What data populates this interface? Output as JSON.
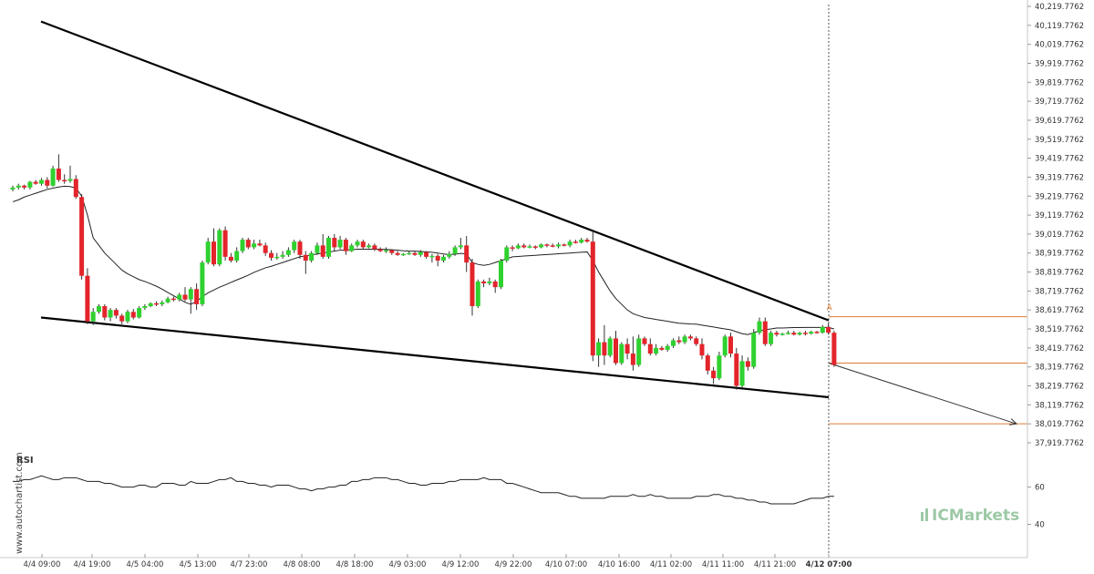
{
  "chart_data": {
    "type": "candlestick",
    "price_axis": {
      "ticks": [
        "40,219.7762",
        "40,119.7762",
        "40,019.7762",
        "39,919.7762",
        "39,819.7762",
        "39,719.7762",
        "39,619.7762",
        "39,519.7762",
        "39,419.7762",
        "39,319.7762",
        "39,219.7762",
        "39,119.7762",
        "39,019.7762",
        "38,919.7762",
        "38,819.7762",
        "38,719.7762",
        "38,619.7762",
        "38,519.7762",
        "38,419.7762",
        "38,319.7762",
        "38,219.7762",
        "38,119.7762",
        "38,019.7762",
        "37,919.7762"
      ],
      "range": [
        37880,
        40240
      ]
    },
    "time_axis": {
      "labels": [
        "4/4 09:00",
        "4/4 19:00",
        "4/5 04:00",
        "4/5 13:00",
        "4/7 23:00",
        "4/8 08:00",
        "4/8 18:00",
        "4/9 03:00",
        "4/9 12:00",
        "4/9 22:00",
        "4/10 07:00",
        "4/10 16:00",
        "4/11 02:00",
        "4/11 11:00",
        "4/11 21:00",
        "4/12 07:00"
      ],
      "bold_label": "4/12 07:00"
    },
    "candles": [
      [
        39255,
        39265,
        39245,
        39275
      ],
      [
        39265,
        39275,
        39255,
        39285
      ],
      [
        39275,
        39265,
        39255,
        39280
      ],
      [
        39265,
        39295,
        39255,
        39300
      ],
      [
        39295,
        39285,
        39280,
        39305
      ],
      [
        39285,
        39305,
        39275,
        39315
      ],
      [
        39305,
        39275,
        39260,
        39320
      ],
      [
        39275,
        39365,
        39270,
        39380
      ],
      [
        39365,
        39305,
        39295,
        39440
      ],
      [
        39305,
        39300,
        39285,
        39335
      ],
      [
        39300,
        39310,
        39290,
        39380
      ],
      [
        39310,
        39215,
        39205,
        39330
      ],
      [
        39215,
        38800,
        38780,
        39230
      ],
      [
        38800,
        38560,
        38545,
        38840
      ],
      [
        38560,
        38610,
        38540,
        38630
      ],
      [
        38610,
        38640,
        38600,
        38650
      ],
      [
        38640,
        38580,
        38565,
        38650
      ],
      [
        38580,
        38620,
        38560,
        38630
      ],
      [
        38620,
        38590,
        38575,
        38630
      ],
      [
        38590,
        38560,
        38545,
        38600
      ],
      [
        38560,
        38610,
        38550,
        38620
      ],
      [
        38610,
        38580,
        38570,
        38625
      ],
      [
        38580,
        38630,
        38575,
        38640
      ],
      [
        38630,
        38640,
        38620,
        38650
      ],
      [
        38640,
        38655,
        38635,
        38660
      ],
      [
        38655,
        38650,
        38640,
        38665
      ],
      [
        38650,
        38660,
        38640,
        38670
      ],
      [
        38660,
        38680,
        38655,
        38690
      ],
      [
        38680,
        38675,
        38665,
        38690
      ],
      [
        38675,
        38700,
        38665,
        38710
      ],
      [
        38700,
        38675,
        38665,
        38740
      ],
      [
        38675,
        38730,
        38600,
        38740
      ],
      [
        38730,
        38650,
        38620,
        38760
      ],
      [
        38650,
        38870,
        38640,
        38880
      ],
      [
        38870,
        38980,
        38860,
        39000
      ],
      [
        38980,
        38860,
        38850,
        39050
      ],
      [
        38860,
        39040,
        38850,
        39050
      ],
      [
        39040,
        38900,
        38880,
        39060
      ],
      [
        38900,
        38880,
        38870,
        38920
      ],
      [
        38880,
        38930,
        38870,
        38950
      ],
      [
        38930,
        38990,
        38920,
        39000
      ],
      [
        38990,
        38950,
        38940,
        39000
      ],
      [
        38950,
        38970,
        38940,
        38990
      ],
      [
        38970,
        38960,
        38955,
        38990
      ],
      [
        38960,
        38920,
        38905,
        38975
      ],
      [
        38920,
        38895,
        38880,
        38935
      ],
      [
        38895,
        38900,
        38885,
        38920
      ],
      [
        38900,
        38910,
        38890,
        38930
      ],
      [
        38910,
        38935,
        38900,
        38950
      ],
      [
        38935,
        38980,
        38920,
        38990
      ],
      [
        38980,
        38910,
        38890,
        38990
      ],
      [
        38910,
        38880,
        38810,
        38930
      ],
      [
        38880,
        38920,
        38870,
        38930
      ],
      [
        38920,
        38960,
        38910,
        38975
      ],
      [
        38960,
        38900,
        38890,
        39020
      ],
      [
        38900,
        39000,
        38890,
        39010
      ],
      [
        39000,
        38950,
        38930,
        39020
      ],
      [
        38950,
        38990,
        38940,
        39010
      ],
      [
        38990,
        38930,
        38910,
        39000
      ],
      [
        38930,
        38960,
        38925,
        38970
      ],
      [
        38960,
        38980,
        38950,
        38990
      ],
      [
        38980,
        38950,
        38940,
        38990
      ],
      [
        38950,
        38960,
        38945,
        38970
      ],
      [
        38960,
        38940,
        38930,
        38970
      ],
      [
        38940,
        38930,
        38925,
        38950
      ],
      [
        38930,
        38935,
        38920,
        38950
      ],
      [
        38935,
        38920,
        38910,
        38940
      ],
      [
        38920,
        38910,
        38905,
        38930
      ],
      [
        38910,
        38915,
        38905,
        38920
      ],
      [
        38915,
        38920,
        38910,
        38930
      ],
      [
        38920,
        38910,
        38905,
        38930
      ],
      [
        38910,
        38925,
        38900,
        38935
      ],
      [
        38925,
        38900,
        38890,
        38930
      ],
      [
        38900,
        38905,
        38870,
        38915
      ],
      [
        38905,
        38880,
        38850,
        38915
      ],
      [
        38880,
        38900,
        38870,
        38910
      ],
      [
        38900,
        38915,
        38890,
        38930
      ],
      [
        38915,
        38950,
        38905,
        38960
      ],
      [
        38950,
        38960,
        38940,
        39000
      ],
      [
        38960,
        38870,
        38820,
        39010
      ],
      [
        38870,
        38640,
        38590,
        38890
      ],
      [
        38640,
        38770,
        38630,
        38780
      ],
      [
        38770,
        38760,
        38740,
        38780
      ],
      [
        38760,
        38770,
        38750,
        38790
      ],
      [
        38770,
        38740,
        38710,
        38780
      ],
      [
        38740,
        38880,
        38730,
        38890
      ],
      [
        38880,
        38950,
        38870,
        38960
      ],
      [
        38950,
        38945,
        38930,
        38960
      ],
      [
        38945,
        38960,
        38940,
        38970
      ],
      [
        38960,
        38950,
        38945,
        38970
      ],
      [
        38950,
        38955,
        38945,
        38965
      ],
      [
        38955,
        38950,
        38940,
        38960
      ],
      [
        38950,
        38965,
        38945,
        38970
      ],
      [
        38965,
        38960,
        38950,
        38970
      ],
      [
        38960,
        38955,
        38950,
        38970
      ],
      [
        38955,
        38965,
        38945,
        38975
      ],
      [
        38965,
        38960,
        38955,
        38970
      ],
      [
        38960,
        38980,
        38950,
        38990
      ],
      [
        38980,
        38975,
        38970,
        38990
      ],
      [
        38975,
        38990,
        38970,
        39000
      ],
      [
        38990,
        38980,
        38975,
        39000
      ],
      [
        38980,
        38380,
        38350,
        39030
      ],
      [
        38380,
        38450,
        38320,
        38470
      ],
      [
        38450,
        38380,
        38330,
        38540
      ],
      [
        38380,
        38470,
        38370,
        38480
      ],
      [
        38470,
        38340,
        38330,
        38510
      ],
      [
        38340,
        38440,
        38330,
        38450
      ],
      [
        38440,
        38390,
        38360,
        38470
      ],
      [
        38390,
        38330,
        38300,
        38480
      ],
      [
        38330,
        38470,
        38320,
        38490
      ],
      [
        38470,
        38440,
        38430,
        38480
      ],
      [
        38440,
        38390,
        38380,
        38470
      ],
      [
        38390,
        38420,
        38380,
        38440
      ],
      [
        38420,
        38410,
        38405,
        38430
      ],
      [
        38410,
        38430,
        38400,
        38440
      ],
      [
        38430,
        38460,
        38420,
        38470
      ],
      [
        38460,
        38450,
        38440,
        38480
      ],
      [
        38450,
        38480,
        38440,
        38490
      ],
      [
        38480,
        38470,
        38460,
        38490
      ],
      [
        38470,
        38440,
        38430,
        38480
      ],
      [
        38440,
        38380,
        38360,
        38470
      ],
      [
        38380,
        38300,
        38280,
        38390
      ],
      [
        38300,
        38260,
        38230,
        38320
      ],
      [
        38260,
        38380,
        38250,
        38400
      ],
      [
        38380,
        38480,
        38370,
        38490
      ],
      [
        38480,
        38390,
        38370,
        38500
      ],
      [
        38390,
        38220,
        38200,
        38420
      ],
      [
        38220,
        38350,
        38210,
        38380
      ],
      [
        38350,
        38320,
        38300,
        38370
      ],
      [
        38320,
        38500,
        38310,
        38520
      ],
      [
        38500,
        38560,
        38490,
        38580
      ],
      [
        38560,
        38440,
        38430,
        38580
      ],
      [
        38440,
        38500,
        38430,
        38510
      ],
      [
        38500,
        38490,
        38480,
        38510
      ],
      [
        38490,
        38495,
        38485,
        38500
      ],
      [
        38495,
        38500,
        38490,
        38510
      ],
      [
        38500,
        38490,
        38485,
        38510
      ],
      [
        38490,
        38500,
        38485,
        38505
      ],
      [
        38500,
        38495,
        38485,
        38510
      ],
      [
        38495,
        38505,
        38490,
        38510
      ],
      [
        38505,
        38500,
        38495,
        38510
      ],
      [
        38500,
        38530,
        38495,
        38540
      ],
      [
        38530,
        38500,
        38490,
        38550
      ],
      [
        38500,
        38330,
        38320,
        38510
      ]
    ],
    "moving_average": {
      "values": [
        39190,
        39200,
        39215,
        39225,
        39235,
        39245,
        39255,
        39262,
        39268,
        39272,
        39270,
        39262,
        39220,
        39120,
        39000,
        38960,
        38920,
        38890,
        38860,
        38830,
        38810,
        38795,
        38780,
        38770,
        38758,
        38745,
        38730,
        38712,
        38695,
        38678,
        38660,
        38650,
        38665,
        38690,
        38710,
        38725,
        38740,
        38752,
        38765,
        38778,
        38790,
        38803,
        38818,
        38830,
        38842,
        38850,
        38860,
        38870,
        38880,
        38890,
        38900,
        38905,
        38910,
        38915,
        38920,
        38925,
        38930,
        38935,
        38935,
        38938,
        38940,
        38940,
        38940,
        38940,
        38940,
        38939,
        38937,
        38935,
        38932,
        38930,
        38930,
        38928,
        38926,
        38924,
        38920,
        38915,
        38912,
        38914,
        38918,
        38915,
        38870,
        38860,
        38855,
        38860,
        38870,
        38880,
        38890,
        38900,
        38902,
        38904,
        38906,
        38908,
        38910,
        38912,
        38914,
        38916,
        38918,
        38920,
        38922,
        38924,
        38926,
        38880,
        38820,
        38770,
        38720,
        38680,
        38650,
        38620,
        38600,
        38590,
        38580,
        38575,
        38570,
        38565,
        38560,
        38555,
        38550,
        38548,
        38546,
        38545,
        38540,
        38535,
        38530,
        38525,
        38520,
        38515,
        38505,
        38495,
        38490,
        38500,
        38510,
        38515,
        38520,
        38525,
        38525,
        38526,
        38527,
        38527,
        38528,
        38528,
        38528,
        38528,
        38528,
        38520
      ]
    },
    "pattern": {
      "name": "falling wedge",
      "upper_line": [
        [
          0,
          40140
        ],
        [
          143,
          38565
        ]
      ],
      "lower_line": [
        [
          0,
          38580
        ],
        [
          143,
          38160
        ]
      ],
      "projection": [
        [
          143,
          38340
        ],
        [
          172,
          38019.7762
        ]
      ],
      "levels": [
        38584,
        38340,
        38019.7762
      ],
      "marker": "A",
      "marker_index": 142,
      "marker_price": 38570
    },
    "rsi": {
      "label": "RSI",
      "axis_ticks": [
        "60",
        "40"
      ],
      "range": [
        30,
        72
      ],
      "values": [
        63,
        63,
        64,
        64,
        65,
        66,
        65,
        64,
        64,
        65,
        65,
        65,
        64,
        63,
        63,
        63,
        62,
        62,
        61,
        60,
        60,
        60,
        61,
        61,
        60,
        60,
        62,
        62,
        62,
        61,
        61,
        63,
        62,
        62,
        62,
        63,
        64,
        64,
        65,
        63,
        63,
        62,
        62,
        61,
        61,
        60,
        61,
        61,
        61,
        60,
        59,
        59,
        58,
        59,
        59,
        60,
        60,
        61,
        61,
        63,
        63,
        64,
        64,
        65,
        65,
        65,
        64,
        64,
        63,
        62,
        62,
        61,
        61,
        62,
        62,
        62,
        63,
        63,
        64,
        64,
        64,
        64,
        65,
        64,
        64,
        64,
        62,
        62,
        61,
        60,
        59,
        58,
        57,
        57,
        57,
        57,
        56,
        55,
        55,
        54,
        54,
        54,
        54,
        54,
        55,
        55,
        55,
        55,
        56,
        55,
        55,
        56,
        55,
        55,
        54,
        54,
        54,
        54,
        54,
        55,
        55,
        55,
        56,
        56,
        55,
        55,
        54,
        54,
        53,
        53,
        52,
        52,
        51,
        51,
        51,
        51,
        51,
        52,
        53,
        54,
        54,
        54,
        55,
        55
      ]
    },
    "watermark_side": "www.autochartist.com",
    "brand": "ICMarkets"
  }
}
